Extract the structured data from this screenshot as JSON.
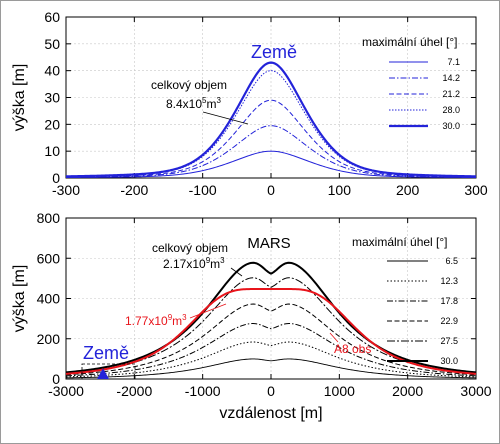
{
  "chart_data": [
    {
      "type": "line",
      "title": "Země",
      "xlabel": "",
      "ylabel": "výška [m]",
      "xlim": [
        -300,
        300
      ],
      "ylim": [
        0,
        60
      ],
      "xticks": [
        -300,
        -200,
        -100,
        0,
        100,
        200,
        300
      ],
      "yticks": [
        0,
        10,
        20,
        30,
        40,
        50,
        60
      ],
      "legend": {
        "title": "maximální úhel [°]",
        "placement": "top-right",
        "entries": [
          "7.1",
          "14.2",
          "21.2",
          "28.0",
          "30.0"
        ]
      },
      "annotation": {
        "line1": "celkový objem",
        "mantissa": "8.4x10",
        "exp": "5",
        "unit": "m",
        "unitexp": "3"
      },
      "peak_label_y": 55,
      "series": [
        {
          "name": "7.1",
          "peak": 10,
          "width": 62,
          "color": "#2323d9",
          "dash": "",
          "stroke": 1.0
        },
        {
          "name": "14.2",
          "peak": 19.5,
          "width": 58,
          "color": "#2323d9",
          "dash": "6,2,1.5,2",
          "stroke": 1.0
        },
        {
          "name": "21.2",
          "peak": 29,
          "width": 55,
          "color": "#2323d9",
          "dash": "5,2.5",
          "stroke": 1.0
        },
        {
          "name": "28.0",
          "peak": 40,
          "width": 54,
          "color": "#2323d9",
          "dash": "1.5,1.5",
          "stroke": 1.0
        },
        {
          "name": "30.0",
          "peak": 43,
          "width": 54,
          "color": "#2323d9",
          "dash": "",
          "stroke": 2.2
        }
      ]
    },
    {
      "type": "line",
      "title": "MARS",
      "xlabel": "vzdálenost [m]",
      "ylabel": "výška [m]",
      "xlim": [
        -3000,
        3000
      ],
      "ylim": [
        0,
        800
      ],
      "xticks": [
        -3000,
        -2000,
        -1000,
        0,
        1000,
        2000,
        3000
      ],
      "yticks": [
        0,
        200,
        400,
        600,
        800
      ],
      "legend": {
        "title": "maximální úhel [°]",
        "placement": "top-right",
        "entries": [
          "6.5",
          "12.3",
          "17.8",
          "22.9",
          "27.5",
          "30.0"
        ]
      },
      "annotation": {
        "line1": "celkový objem",
        "mantissa": "2.17x10",
        "exp": "9",
        "unit": "m",
        "unitexp": "3"
      },
      "red_annotation": {
        "mantissa": "1.77x10",
        "exp": "9",
        "unit": "m",
        "unitexp": "3"
      },
      "a8_label": "A8 obs",
      "earth_label": "Země",
      "series": [
        {
          "name": "6.5",
          "peak": 103,
          "color": "#000000",
          "dash": "",
          "stroke": 0.9
        },
        {
          "name": "12.3",
          "peak": 190,
          "color": "#000000",
          "dash": "1.5,2",
          "stroke": 1.0
        },
        {
          "name": "17.8",
          "peak": 285,
          "color": "#000000",
          "dash": "6,2,1.5,2",
          "stroke": 1.0
        },
        {
          "name": "22.9",
          "peak": 385,
          "color": "#000000",
          "dash": "5,2.5",
          "stroke": 1.0
        },
        {
          "name": "27.5",
          "peak": 520,
          "color": "#000000",
          "dash": "8,2,2,2",
          "stroke": 1.0
        },
        {
          "name": "30.0",
          "peak": 597,
          "color": "#000000",
          "dash": "",
          "stroke": 2.0
        },
        {
          "name": "A8 obs",
          "peak": 447,
          "color": "#e8141b",
          "dash": "",
          "stroke": 2.0,
          "plateau": 250
        }
      ]
    }
  ]
}
